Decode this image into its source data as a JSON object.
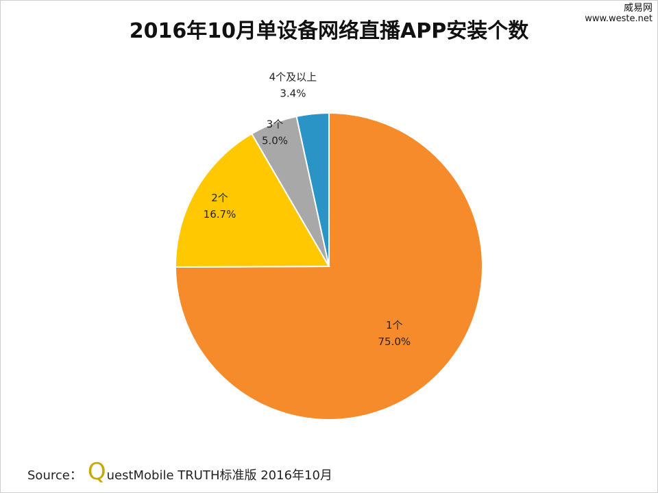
{
  "watermark": {
    "name": "威易网",
    "url": "www.weste.net"
  },
  "source": {
    "prefix": "Source：",
    "brand_initial": "Q",
    "text": "uestMobile TRUTH标准版 2016年10月"
  },
  "chart_data": {
    "type": "pie",
    "title": "2016年10月单设备网络直播APP安装个数",
    "start_angle_deg": 0,
    "direction": "clockwise",
    "slices": [
      {
        "label": "1个",
        "value": 75.0,
        "display": "75.0%",
        "color": "#f68b2c"
      },
      {
        "label": "2个",
        "value": 16.7,
        "display": "16.7%",
        "color": "#ffc800"
      },
      {
        "label": "3个",
        "value": 5.0,
        "display": "5.0%",
        "color": "#a8a8a8"
      },
      {
        "label": "4个及以上",
        "value": 3.4,
        "display": "3.4%",
        "color": "#2a94c6"
      }
    ]
  }
}
